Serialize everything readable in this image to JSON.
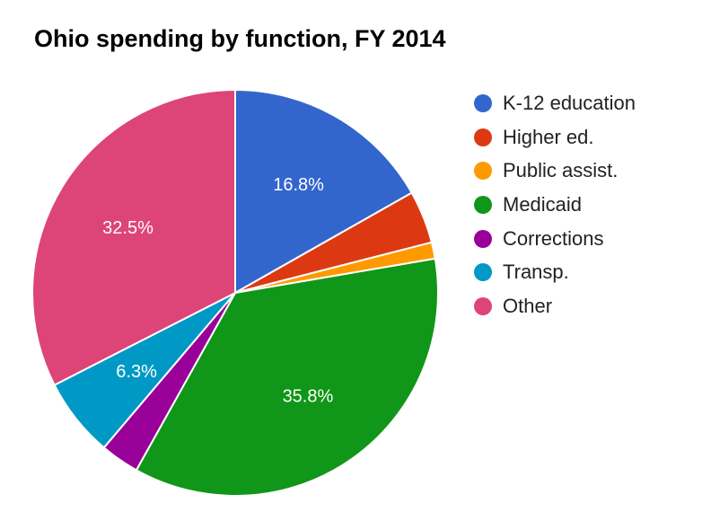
{
  "chart_data": {
    "type": "pie",
    "title": "Ohio spending by function, FY 2014",
    "slices": [
      {
        "name": "K-12 education",
        "value": 16.8,
        "color": "#3366cc",
        "label": "16.8%"
      },
      {
        "name": "Higher ed.",
        "value": 4.2,
        "color": "#dc3912",
        "label": ""
      },
      {
        "name": "Public assist.",
        "value": 1.3,
        "color": "#ff9900",
        "label": ""
      },
      {
        "name": "Medicaid",
        "value": 35.8,
        "color": "#109618",
        "label": "35.8%"
      },
      {
        "name": "Corrections",
        "value": 3.1,
        "color": "#990099",
        "label": ""
      },
      {
        "name": "Transp.",
        "value": 6.3,
        "color": "#0099c6",
        "label": "6.3%"
      },
      {
        "name": "Other",
        "value": 32.5,
        "color": "#dd4477",
        "label": "32.5%"
      }
    ],
    "legend_position": "right"
  }
}
